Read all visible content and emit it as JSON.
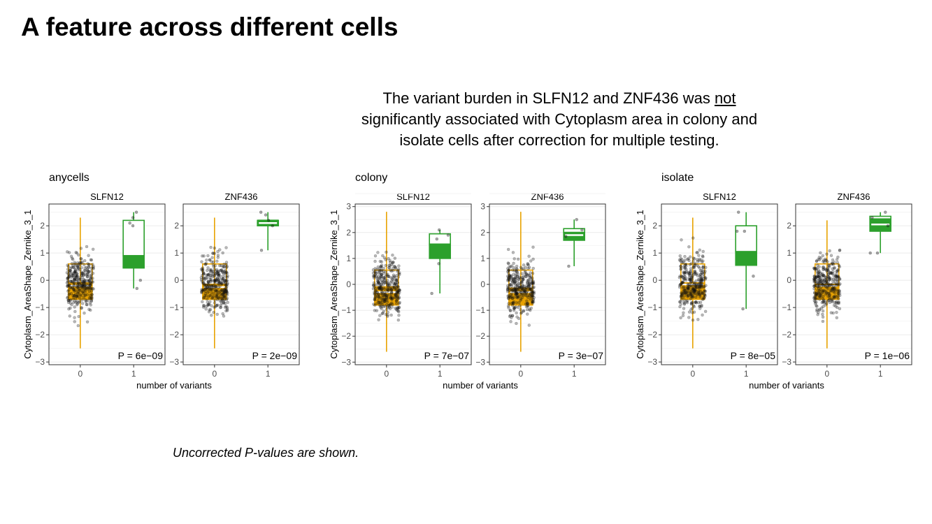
{
  "slide": {
    "title": "A feature across different cells",
    "subtitle_pre": "The variant burden in SLFN12 and ZNF436 was ",
    "subtitle_emph": "not",
    "subtitle_post": " significantly associated with Cytoplasm area in colony and isolate cells after correction for multiple testing.",
    "footnote": "Uncorrected P-values are shown."
  },
  "colors": {
    "zero_variants": "#e8a200",
    "one_variant": "#2ca02c",
    "points": "#000000",
    "grid": "#ebebeb"
  },
  "chart_data": [
    {
      "type": "box",
      "title": "anycells",
      "xlabel": "number of variants",
      "ylabel": "Cytoplasm_AreaShape_Zernike_3_1",
      "ylim": [
        -3.1,
        2.8
      ],
      "yticks": [
        2,
        1,
        0,
        -1,
        -2,
        -3
      ],
      "yticklabels": [
        "2",
        "1",
        "0",
        "−1",
        "−2",
        "−3"
      ],
      "categories": [
        "0",
        "1"
      ],
      "panels": [
        {
          "gene": "SLFN12",
          "p_label": "P = 6e−09",
          "boxes": [
            {
              "x": "0",
              "min": -2.5,
              "q1": -0.7,
              "median": -0.1,
              "q3": 0.6,
              "max": 2.3,
              "mean": -0.2
            },
            {
              "x": "1",
              "min": -0.3,
              "q1": 0.45,
              "median": 0.9,
              "q3": 2.2,
              "max": 2.5,
              "mean": 1.95,
              "points": [
                2.5,
                2.3,
                2.1,
                2.0,
                0.0,
                -0.3
              ]
            }
          ]
        },
        {
          "gene": "ZNF436",
          "p_label": "P = 2e−09",
          "boxes": [
            {
              "x": "0",
              "min": -2.5,
              "q1": -0.7,
              "median": -0.15,
              "q3": 0.6,
              "max": 2.3,
              "mean": -0.25
            },
            {
              "x": "1",
              "min": 1.1,
              "q1": 2.0,
              "median": 2.2,
              "q3": 2.2,
              "max": 2.5,
              "mean": 2.1,
              "points": [
                2.5,
                2.4,
                2.2,
                2.0,
                1.1
              ]
            }
          ]
        }
      ]
    },
    {
      "type": "box",
      "title": "colony",
      "xlabel": "number of variants",
      "ylabel": "Cytoplasm_AreaShape_Zernike_3_1",
      "ylim": [
        -3.1,
        3.1
      ],
      "yticks": [
        3,
        2,
        1,
        0,
        -1,
        -2,
        -3
      ],
      "yticklabels": [
        "3",
        "2",
        "1",
        "0",
        "−1",
        "−2",
        "−3"
      ],
      "categories": [
        "0",
        "1"
      ],
      "panels": [
        {
          "gene": "SLFN12",
          "p_label": "P = 7e−07",
          "boxes": [
            {
              "x": "0",
              "min": -2.6,
              "q1": -0.8,
              "median": -0.1,
              "q3": 0.55,
              "max": 2.8,
              "mean": -0.3
            },
            {
              "x": "1",
              "min": -0.35,
              "q1": 1.0,
              "median": 1.55,
              "q3": 1.95,
              "max": 2.1,
              "mean": 1.75,
              "points": [
                2.1,
                1.9,
                1.75,
                0.8,
                -0.35
              ]
            }
          ]
        },
        {
          "gene": "ZNF436",
          "p_label": "P = 3e−07",
          "boxes": [
            {
              "x": "0",
              "min": -2.6,
              "q1": -0.8,
              "median": -0.15,
              "q3": 0.55,
              "max": 2.8,
              "mean": -0.3
            },
            {
              "x": "1",
              "min": 0.7,
              "q1": 1.7,
              "median": 2.0,
              "q3": 2.15,
              "max": 2.5,
              "mean": 1.9,
              "points": [
                2.5,
                2.1,
                1.85,
                0.7
              ]
            }
          ]
        }
      ]
    },
    {
      "type": "box",
      "title": "isolate",
      "xlabel": "number of variants",
      "ylabel": "Cytoplasm_AreaShape_Zernike_3_1",
      "ylim": [
        -3.1,
        2.8
      ],
      "yticks": [
        2,
        1,
        0,
        -1,
        -2,
        -3
      ],
      "yticklabels": [
        "2",
        "1",
        "0",
        "−1",
        "−2",
        "−3"
      ],
      "categories": [
        "0",
        "1"
      ],
      "panels": [
        {
          "gene": "SLFN12",
          "p_label": "P = 8e−05",
          "boxes": [
            {
              "x": "0",
              "min": -2.5,
              "q1": -0.7,
              "median": -0.1,
              "q3": 0.6,
              "max": 2.3,
              "mean": -0.15
            },
            {
              "x": "1",
              "min": -1.05,
              "q1": 0.55,
              "median": 1.05,
              "q3": 2.0,
              "max": 2.5,
              "mean": 1.8,
              "points": [
                2.5,
                1.8,
                1.8,
                0.15,
                -1.05
              ]
            }
          ]
        },
        {
          "gene": "ZNF436",
          "p_label": "P = 1e−06",
          "boxes": [
            {
              "x": "0",
              "min": -2.5,
              "q1": -0.7,
              "median": -0.15,
              "q3": 0.6,
              "max": 2.2,
              "mean": -0.2
            },
            {
              "x": "1",
              "min": 1.0,
              "q1": 1.8,
              "median": 2.25,
              "q3": 2.35,
              "max": 2.5,
              "mean": 2.05,
              "points": [
                2.5,
                2.3,
                2.0,
                1.0,
                1.0
              ]
            }
          ]
        }
      ]
    }
  ]
}
